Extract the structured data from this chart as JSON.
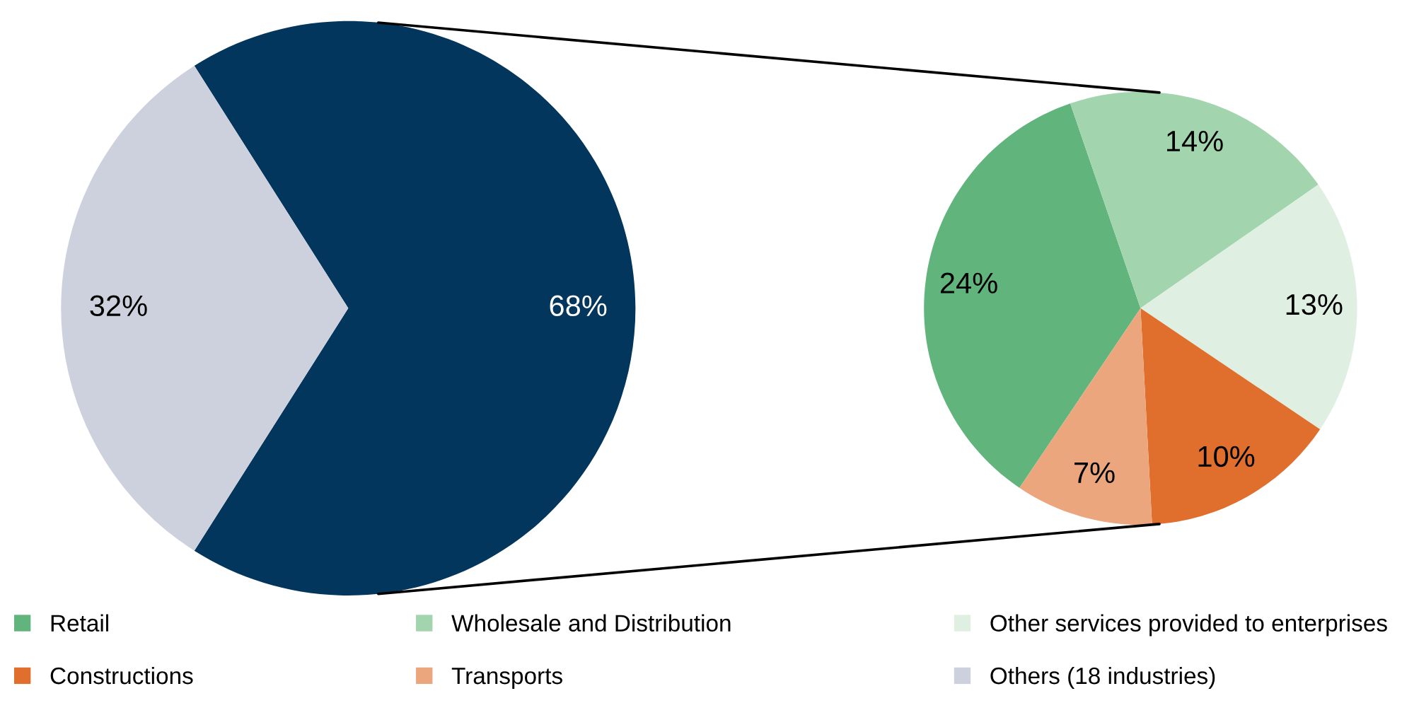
{
  "chart_data": [
    {
      "type": "pie",
      "categories": [
        null,
        "Others (18 industries)"
      ],
      "values": [
        68,
        32
      ],
      "colors": [
        "#03365c",
        "#cdd1de"
      ],
      "value_labels": [
        "68%",
        "32%"
      ],
      "legend": "bottom"
    },
    {
      "type": "pie",
      "categories": [
        "Retail",
        "Wholesale and Distribution",
        "Other services provided to enterprises",
        "Constructions",
        "Transports"
      ],
      "values": [
        24,
        14,
        13,
        10,
        7
      ],
      "colors": [
        "#61b57c",
        "#a2d5ae",
        "#dff0e3",
        "#e06f2d",
        "#eba67e"
      ],
      "value_labels": [
        "24%",
        "14%",
        "13%",
        "10%",
        "7%"
      ],
      "legend": "bottom"
    }
  ]
}
